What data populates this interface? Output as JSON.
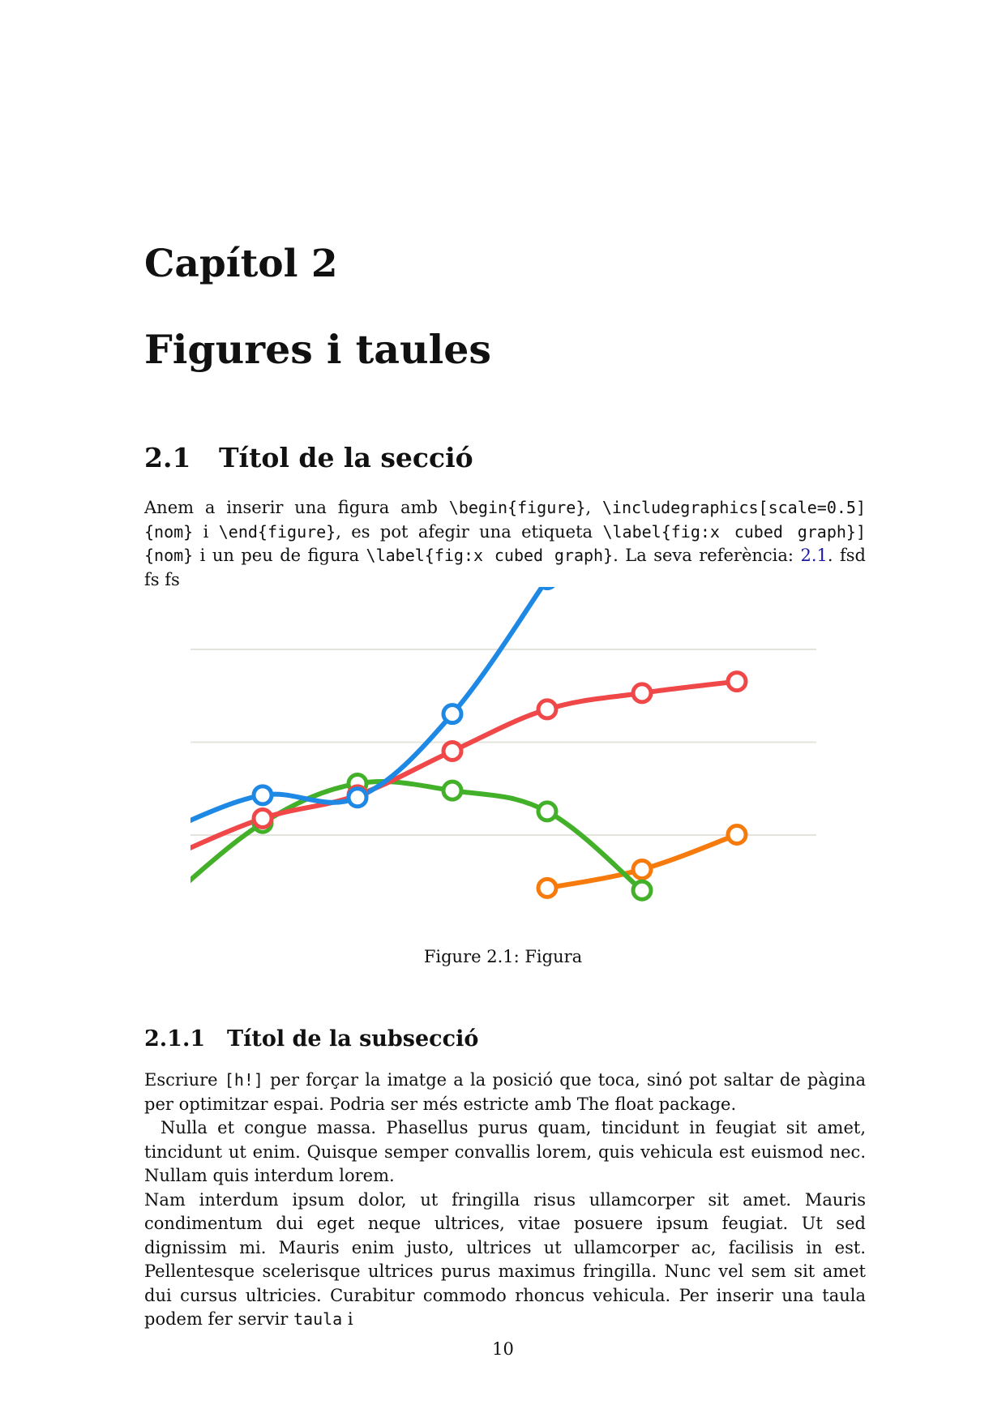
{
  "chapter": {
    "label": "Capítol 2",
    "title": "Figures i taules"
  },
  "section": {
    "number": "2.1",
    "title": "Títol de la secció"
  },
  "para1": {
    "t1": "Anem a inserir una figura amb ",
    "c1": "\\begin{figure}",
    "t2": ", ",
    "c2": "\\includegraphics[scale=0.5]{nom}",
    "t3": " i ",
    "c3": "\\end{figure}",
    "t4": ", es pot afegir una etiqueta ",
    "c4": "\\label{fig:x cubed graph}]{nom}",
    "t5": " i un peu de figura ",
    "c5": "\\label{fig:x cubed graph}",
    "t6": ". La seva referència: ",
    "ref": "2.1",
    "t7": ". fsd fs fs"
  },
  "figure": {
    "caption": "Figure 2.1: Figura"
  },
  "chart_data": {
    "type": "line",
    "title": "",
    "xlabel": "",
    "ylabel": "",
    "x": [
      0,
      1,
      2,
      3,
      4,
      5,
      6
    ],
    "grid": true,
    "series": [
      {
        "color": "#1e88e5",
        "values": [
          2.1,
          2.85,
          2.8,
          4.6,
          7.5,
          null,
          null
        ]
      },
      {
        "color": "#f04848",
        "values": [
          1.5,
          2.35,
          2.85,
          3.8,
          4.7,
          5.05,
          5.3
        ]
      },
      {
        "color": "#43b02a",
        "values": [
          0.6,
          2.25,
          3.1,
          2.95,
          2.5,
          0.8,
          null
        ]
      },
      {
        "color": "#f77b0c",
        "values": [
          null,
          null,
          null,
          null,
          0.85,
          1.25,
          2.0
        ]
      }
    ],
    "colors": {
      "blue": "#1e88e5",
      "red": "#f04848",
      "green": "#43b02a",
      "orange": "#f77b0c",
      "grid": "#e4e4dc"
    }
  },
  "subsection": {
    "number": "2.1.1",
    "title": "Títol de la subsecció"
  },
  "para2": {
    "t1": "Escriure ",
    "c1": "[h!]",
    "t2": " per forçar la imatge a la posició que toca, sinó pot saltar de pàgina per optimitzar espai. Podria ser més estricte amb The float package."
  },
  "para3": "Nulla et congue massa. Phasellus purus quam, tincidunt in feugiat sit amet, tincidunt ut enim. Quisque semper convallis lorem, quis vehicula est euismod nec. Nullam quis interdum lorem.",
  "para4": {
    "t1": "Nam interdum ipsum dolor, ut fringilla risus ullamcorper sit amet. Mauris condimentum dui eget neque ultrices, vitae posuere ipsum feugiat. Ut sed dignissim mi. Mauris enim justo, ultrices ut ullamcorper ac, facilisis in est. Pellentesque scelerisque ultrices purus maximus fringilla. Nunc vel sem sit amet dui cursus ultricies. Curabitur commodo rhoncus vehicula. Per inserir una taula podem fer servir ",
    "c1": "taula",
    "t2": " i"
  },
  "page_number": "10"
}
